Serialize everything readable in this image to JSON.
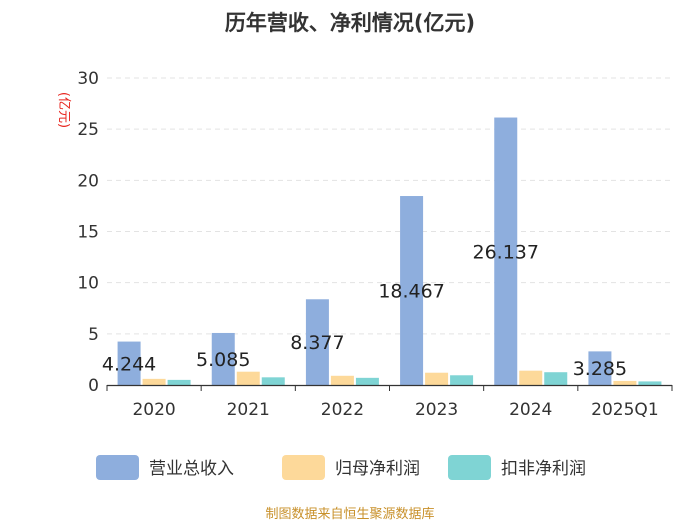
{
  "chart_data": {
    "type": "bar",
    "title": "历年营收、净利情况(亿元)",
    "ylabel": "(亿元)",
    "ylim": [
      0,
      30
    ],
    "yticks": [
      0,
      5,
      10,
      15,
      20,
      25,
      30
    ],
    "categories": [
      "2020",
      "2021",
      "2022",
      "2023",
      "2024",
      "2025Q1"
    ],
    "series": [
      {
        "name": "营业总收入",
        "color": "#8eaedd",
        "values": [
          4.244,
          5.085,
          8.377,
          18.467,
          26.137,
          3.285
        ],
        "labels": [
          "4.244",
          "5.085",
          "8.377",
          "18.467",
          "26.137",
          "3.285"
        ]
      },
      {
        "name": "归母净利润",
        "color": "#fdd99a",
        "values": [
          0.6,
          1.3,
          0.9,
          1.2,
          1.4,
          0.4
        ]
      },
      {
        "name": "扣非净利润",
        "color": "#7fd4d4",
        "values": [
          0.5,
          0.75,
          0.7,
          0.95,
          1.25,
          0.35
        ]
      }
    ],
    "legend_position": "bottom",
    "source": "制图数据来自恒生聚源数据库"
  }
}
